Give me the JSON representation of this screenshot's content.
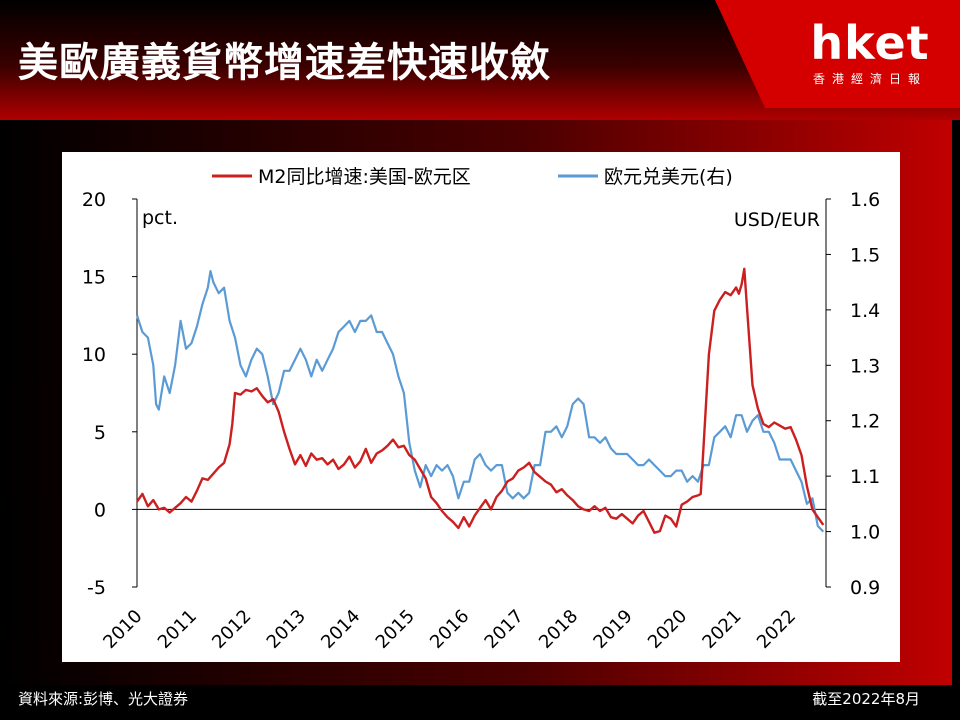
{
  "headline": "美歐廣義貨幣增速差快速收斂",
  "brand": {
    "name": "hket",
    "tagline": "香港經濟日報"
  },
  "footer": {
    "source": "資料來源:彭博、光大證券",
    "as_of": "截至2022年8月"
  },
  "colors": {
    "m2": "#cc1f1f",
    "eurusd": "#5b9bd5",
    "accent": "#c00000"
  },
  "chart_data": {
    "type": "line",
    "left_axis_unit": "pct.",
    "right_axis_unit": "USD/EUR",
    "left_ylim": [
      -5,
      20
    ],
    "left_ticks": [
      "20",
      "15",
      "10",
      "5",
      "0",
      "-5"
    ],
    "right_ylim": [
      0.9,
      1.6
    ],
    "right_ticks": [
      "1.6",
      "1.5",
      "1.4",
      "1.3",
      "1.2",
      "1.1",
      "1.0",
      "0.9"
    ],
    "x_ticks": [
      "2010",
      "2011",
      "2012",
      "2013",
      "2014",
      "2015",
      "2016",
      "2017",
      "2018",
      "2019",
      "2020",
      "2021",
      "2022"
    ],
    "series": [
      {
        "name": "M2同比增速:美国-欧元区",
        "axis": "left",
        "color": "#cc1f1f",
        "points": [
          [
            2010.0,
            0.5
          ],
          [
            2010.1,
            1.0
          ],
          [
            2010.2,
            0.2
          ],
          [
            2010.3,
            0.6
          ],
          [
            2010.4,
            0.0
          ],
          [
            2010.5,
            0.1
          ],
          [
            2010.6,
            -0.2
          ],
          [
            2010.7,
            0.1
          ],
          [
            2010.8,
            0.4
          ],
          [
            2010.9,
            0.8
          ],
          [
            2011.0,
            0.5
          ],
          [
            2011.1,
            1.2
          ],
          [
            2011.2,
            2.0
          ],
          [
            2011.3,
            1.9
          ],
          [
            2011.4,
            2.3
          ],
          [
            2011.5,
            2.7
          ],
          [
            2011.6,
            3.0
          ],
          [
            2011.7,
            4.2
          ],
          [
            2011.75,
            5.5
          ],
          [
            2011.8,
            7.5
          ],
          [
            2011.9,
            7.4
          ],
          [
            2012.0,
            7.7
          ],
          [
            2012.1,
            7.6
          ],
          [
            2012.2,
            7.8
          ],
          [
            2012.3,
            7.3
          ],
          [
            2012.4,
            6.9
          ],
          [
            2012.5,
            7.1
          ],
          [
            2012.6,
            6.3
          ],
          [
            2012.7,
            5.0
          ],
          [
            2012.8,
            3.9
          ],
          [
            2012.9,
            2.9
          ],
          [
            2013.0,
            3.5
          ],
          [
            2013.1,
            2.8
          ],
          [
            2013.2,
            3.6
          ],
          [
            2013.3,
            3.2
          ],
          [
            2013.4,
            3.3
          ],
          [
            2013.5,
            2.9
          ],
          [
            2013.6,
            3.2
          ],
          [
            2013.7,
            2.6
          ],
          [
            2013.8,
            2.9
          ],
          [
            2013.9,
            3.4
          ],
          [
            2014.0,
            2.7
          ],
          [
            2014.1,
            3.1
          ],
          [
            2014.2,
            3.9
          ],
          [
            2014.3,
            3.0
          ],
          [
            2014.4,
            3.6
          ],
          [
            2014.5,
            3.8
          ],
          [
            2014.6,
            4.1
          ],
          [
            2014.7,
            4.5
          ],
          [
            2014.8,
            4.0
          ],
          [
            2014.9,
            4.1
          ],
          [
            2015.0,
            3.5
          ],
          [
            2015.1,
            3.2
          ],
          [
            2015.2,
            2.6
          ],
          [
            2015.3,
            2.0
          ],
          [
            2015.4,
            0.8
          ],
          [
            2015.5,
            0.4
          ],
          [
            2015.6,
            -0.1
          ],
          [
            2015.7,
            -0.5
          ],
          [
            2015.8,
            -0.8
          ],
          [
            2015.9,
            -1.2
          ],
          [
            2016.0,
            -0.5
          ],
          [
            2016.1,
            -1.1
          ],
          [
            2016.2,
            -0.4
          ],
          [
            2016.3,
            0.1
          ],
          [
            2016.4,
            0.6
          ],
          [
            2016.5,
            0.0
          ],
          [
            2016.6,
            0.8
          ],
          [
            2016.7,
            1.2
          ],
          [
            2016.8,
            1.8
          ],
          [
            2016.9,
            2.0
          ],
          [
            2017.0,
            2.5
          ],
          [
            2017.1,
            2.7
          ],
          [
            2017.2,
            3.0
          ],
          [
            2017.3,
            2.4
          ],
          [
            2017.4,
            2.1
          ],
          [
            2017.5,
            1.8
          ],
          [
            2017.6,
            1.6
          ],
          [
            2017.7,
            1.1
          ],
          [
            2017.8,
            1.3
          ],
          [
            2017.9,
            0.9
          ],
          [
            2018.0,
            0.6
          ],
          [
            2018.1,
            0.2
          ],
          [
            2018.2,
            0.0
          ],
          [
            2018.3,
            -0.1
          ],
          [
            2018.4,
            0.2
          ],
          [
            2018.5,
            -0.1
          ],
          [
            2018.6,
            0.1
          ],
          [
            2018.7,
            -0.5
          ],
          [
            2018.8,
            -0.6
          ],
          [
            2018.9,
            -0.3
          ],
          [
            2019.0,
            -0.6
          ],
          [
            2019.1,
            -0.9
          ],
          [
            2019.2,
            -0.4
          ],
          [
            2019.3,
            -0.1
          ],
          [
            2019.4,
            -0.8
          ],
          [
            2019.5,
            -1.5
          ],
          [
            2019.6,
            -1.4
          ],
          [
            2019.7,
            -0.4
          ],
          [
            2019.8,
            -0.6
          ],
          [
            2019.9,
            -1.1
          ],
          [
            2020.0,
            0.3
          ],
          [
            2020.1,
            0.5
          ],
          [
            2020.2,
            0.8
          ],
          [
            2020.3,
            0.9
          ],
          [
            2020.35,
            1.0
          ],
          [
            2020.4,
            4.0
          ],
          [
            2020.5,
            10.0
          ],
          [
            2020.6,
            12.8
          ],
          [
            2020.7,
            13.5
          ],
          [
            2020.8,
            14.0
          ],
          [
            2020.9,
            13.8
          ],
          [
            2021.0,
            14.3
          ],
          [
            2021.05,
            13.9
          ],
          [
            2021.1,
            14.5
          ],
          [
            2021.15,
            15.5
          ],
          [
            2021.2,
            13.0
          ],
          [
            2021.3,
            8.0
          ],
          [
            2021.4,
            6.5
          ],
          [
            2021.5,
            5.5
          ],
          [
            2021.6,
            5.3
          ],
          [
            2021.7,
            5.6
          ],
          [
            2021.8,
            5.4
          ],
          [
            2021.9,
            5.2
          ],
          [
            2022.0,
            5.3
          ],
          [
            2022.1,
            4.5
          ],
          [
            2022.2,
            3.5
          ],
          [
            2022.3,
            1.5
          ],
          [
            2022.4,
            0.0
          ],
          [
            2022.5,
            -0.5
          ],
          [
            2022.6,
            -1.0
          ]
        ]
      },
      {
        "name": "欧元兑美元(右)",
        "axis": "right",
        "color": "#5b9bd5",
        "points": [
          [
            2010.0,
            1.39
          ],
          [
            2010.1,
            1.36
          ],
          [
            2010.2,
            1.35
          ],
          [
            2010.3,
            1.3
          ],
          [
            2010.35,
            1.23
          ],
          [
            2010.4,
            1.22
          ],
          [
            2010.5,
            1.28
          ],
          [
            2010.6,
            1.25
          ],
          [
            2010.7,
            1.3
          ],
          [
            2010.8,
            1.38
          ],
          [
            2010.9,
            1.33
          ],
          [
            2011.0,
            1.34
          ],
          [
            2011.1,
            1.37
          ],
          [
            2011.2,
            1.41
          ],
          [
            2011.3,
            1.44
          ],
          [
            2011.35,
            1.47
          ],
          [
            2011.4,
            1.45
          ],
          [
            2011.5,
            1.43
          ],
          [
            2011.6,
            1.44
          ],
          [
            2011.7,
            1.38
          ],
          [
            2011.8,
            1.35
          ],
          [
            2011.9,
            1.3
          ],
          [
            2012.0,
            1.28
          ],
          [
            2012.1,
            1.31
          ],
          [
            2012.2,
            1.33
          ],
          [
            2012.3,
            1.32
          ],
          [
            2012.4,
            1.28
          ],
          [
            2012.5,
            1.23
          ],
          [
            2012.6,
            1.25
          ],
          [
            2012.7,
            1.29
          ],
          [
            2012.8,
            1.29
          ],
          [
            2012.9,
            1.31
          ],
          [
            2013.0,
            1.33
          ],
          [
            2013.1,
            1.31
          ],
          [
            2013.2,
            1.28
          ],
          [
            2013.3,
            1.31
          ],
          [
            2013.4,
            1.29
          ],
          [
            2013.5,
            1.31
          ],
          [
            2013.6,
            1.33
          ],
          [
            2013.7,
            1.36
          ],
          [
            2013.8,
            1.37
          ],
          [
            2013.9,
            1.38
          ],
          [
            2014.0,
            1.36
          ],
          [
            2014.1,
            1.38
          ],
          [
            2014.2,
            1.38
          ],
          [
            2014.3,
            1.39
          ],
          [
            2014.4,
            1.36
          ],
          [
            2014.5,
            1.36
          ],
          [
            2014.6,
            1.34
          ],
          [
            2014.7,
            1.32
          ],
          [
            2014.8,
            1.28
          ],
          [
            2014.9,
            1.25
          ],
          [
            2015.0,
            1.16
          ],
          [
            2015.1,
            1.11
          ],
          [
            2015.2,
            1.08
          ],
          [
            2015.3,
            1.12
          ],
          [
            2015.4,
            1.1
          ],
          [
            2015.5,
            1.12
          ],
          [
            2015.6,
            1.11
          ],
          [
            2015.7,
            1.12
          ],
          [
            2015.8,
            1.1
          ],
          [
            2015.9,
            1.06
          ],
          [
            2016.0,
            1.09
          ],
          [
            2016.1,
            1.09
          ],
          [
            2016.2,
            1.13
          ],
          [
            2016.3,
            1.14
          ],
          [
            2016.4,
            1.12
          ],
          [
            2016.5,
            1.11
          ],
          [
            2016.6,
            1.12
          ],
          [
            2016.7,
            1.12
          ],
          [
            2016.8,
            1.07
          ],
          [
            2016.9,
            1.06
          ],
          [
            2017.0,
            1.07
          ],
          [
            2017.1,
            1.06
          ],
          [
            2017.2,
            1.07
          ],
          [
            2017.3,
            1.12
          ],
          [
            2017.4,
            1.12
          ],
          [
            2017.5,
            1.18
          ],
          [
            2017.6,
            1.18
          ],
          [
            2017.7,
            1.19
          ],
          [
            2017.8,
            1.17
          ],
          [
            2017.9,
            1.19
          ],
          [
            2018.0,
            1.23
          ],
          [
            2018.1,
            1.24
          ],
          [
            2018.2,
            1.23
          ],
          [
            2018.3,
            1.17
          ],
          [
            2018.4,
            1.17
          ],
          [
            2018.5,
            1.16
          ],
          [
            2018.6,
            1.17
          ],
          [
            2018.7,
            1.15
          ],
          [
            2018.8,
            1.14
          ],
          [
            2018.9,
            1.14
          ],
          [
            2019.0,
            1.14
          ],
          [
            2019.1,
            1.13
          ],
          [
            2019.2,
            1.12
          ],
          [
            2019.3,
            1.12
          ],
          [
            2019.4,
            1.13
          ],
          [
            2019.5,
            1.12
          ],
          [
            2019.6,
            1.11
          ],
          [
            2019.7,
            1.1
          ],
          [
            2019.8,
            1.1
          ],
          [
            2019.9,
            1.11
          ],
          [
            2020.0,
            1.11
          ],
          [
            2020.1,
            1.09
          ],
          [
            2020.2,
            1.1
          ],
          [
            2020.3,
            1.09
          ],
          [
            2020.4,
            1.12
          ],
          [
            2020.5,
            1.12
          ],
          [
            2020.6,
            1.17
          ],
          [
            2020.7,
            1.18
          ],
          [
            2020.8,
            1.19
          ],
          [
            2020.9,
            1.17
          ],
          [
            2021.0,
            1.21
          ],
          [
            2021.1,
            1.21
          ],
          [
            2021.2,
            1.18
          ],
          [
            2021.3,
            1.2
          ],
          [
            2021.4,
            1.21
          ],
          [
            2021.5,
            1.18
          ],
          [
            2021.6,
            1.18
          ],
          [
            2021.7,
            1.16
          ],
          [
            2021.8,
            1.13
          ],
          [
            2021.9,
            1.13
          ],
          [
            2022.0,
            1.13
          ],
          [
            2022.1,
            1.11
          ],
          [
            2022.2,
            1.09
          ],
          [
            2022.3,
            1.05
          ],
          [
            2022.4,
            1.06
          ],
          [
            2022.5,
            1.01
          ],
          [
            2022.6,
            1.0
          ]
        ]
      }
    ]
  }
}
